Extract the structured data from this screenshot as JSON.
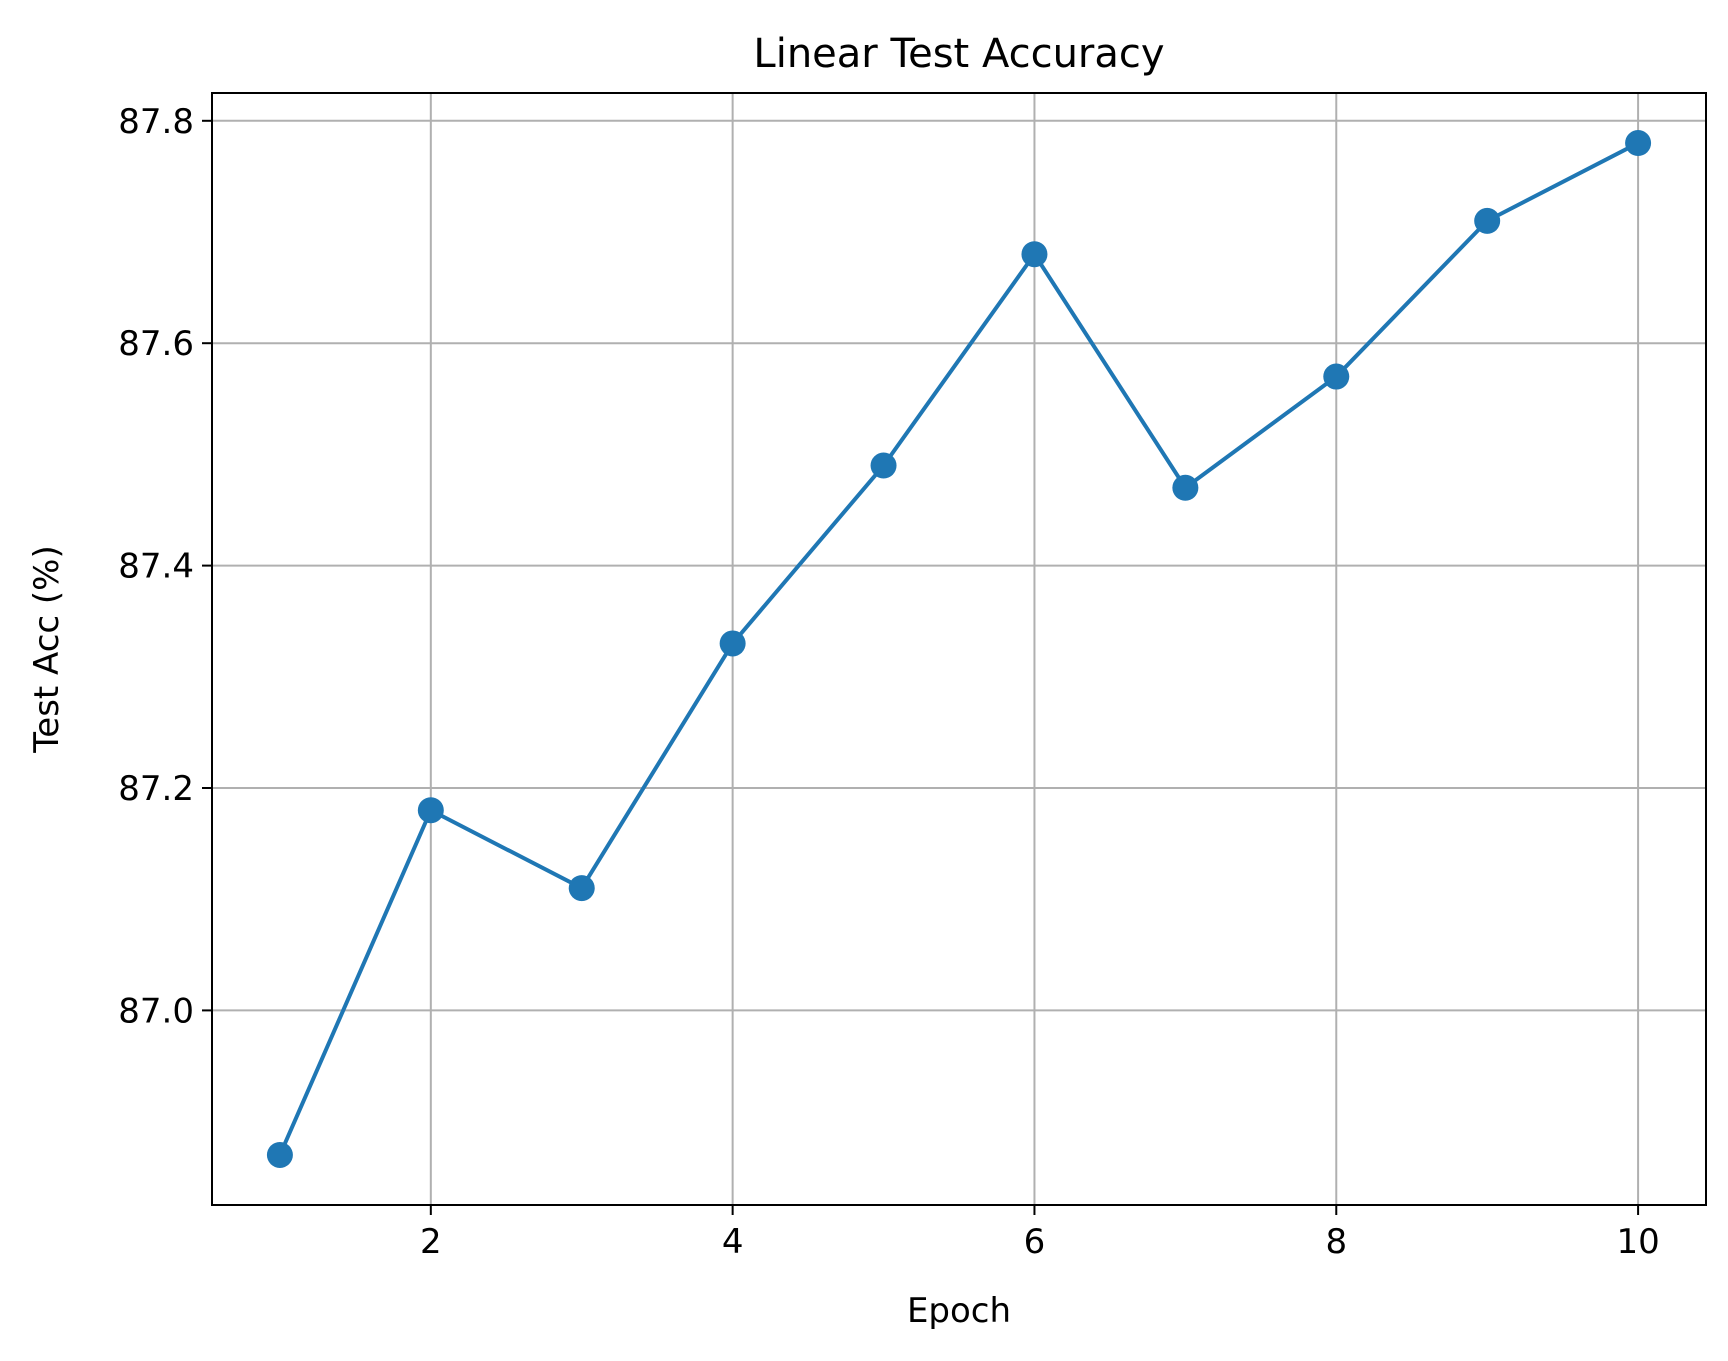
{
  "chart_data": {
    "type": "line",
    "title": "Linear Test Accuracy",
    "xlabel": "Epoch",
    "ylabel": "Test Acc (%)",
    "xlim": [
      0.55,
      10.45
    ],
    "ylim": [
      86.825,
      87.825
    ],
    "xticks": [
      2,
      4,
      6,
      8,
      10
    ],
    "yticks": [
      87.0,
      87.2,
      87.4,
      87.6,
      87.8
    ],
    "ytick_labels": [
      "87.0",
      "87.2",
      "87.4",
      "87.6",
      "87.8"
    ],
    "grid": true,
    "series": [
      {
        "color": "#1f77b4",
        "marker": "circle",
        "x": [
          1,
          2,
          3,
          4,
          5,
          6,
          7,
          8,
          9,
          10
        ],
        "y": [
          86.87,
          87.18,
          87.11,
          87.33,
          87.49,
          87.68,
          87.47,
          87.57,
          87.71,
          87.78
        ]
      }
    ]
  }
}
